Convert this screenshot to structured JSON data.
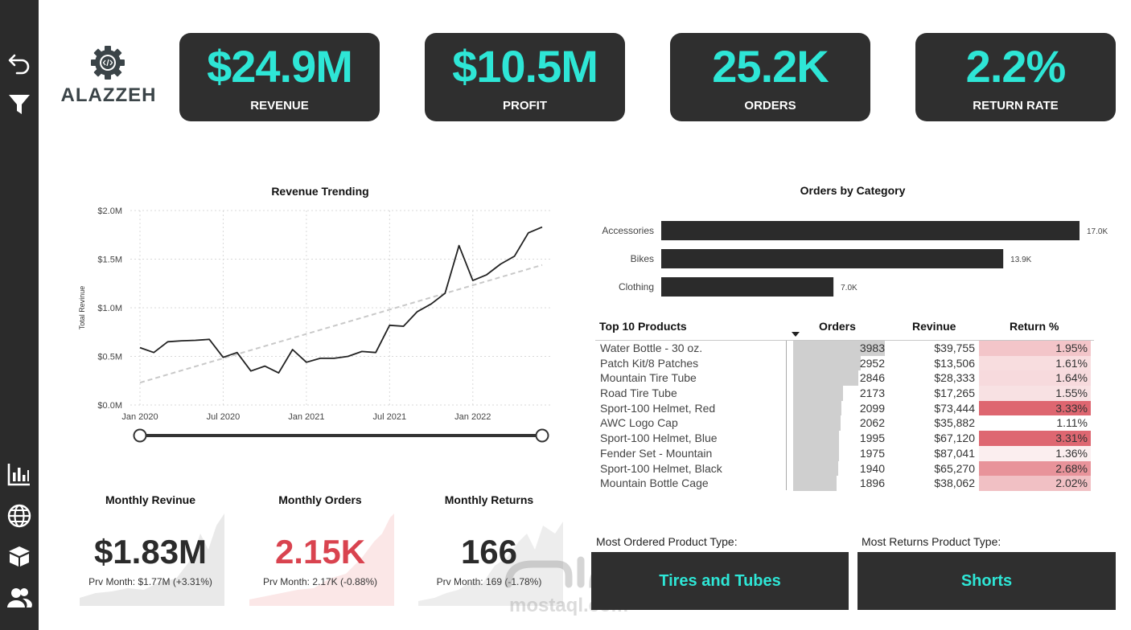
{
  "sidebar": {
    "items": [
      "undo-icon",
      "filter-icon",
      "bar-chart-icon",
      "globe-icon",
      "box-icon",
      "users-icon"
    ]
  },
  "brand": {
    "name": "ALAZZEH"
  },
  "kpis": [
    {
      "value": "$24.9M",
      "label": "REVENUE"
    },
    {
      "value": "$10.5M",
      "label": "PROFIT"
    },
    {
      "value": "25.2K",
      "label": "ORDERS"
    },
    {
      "value": "2.2%",
      "label": "RETURN RATE"
    }
  ],
  "colors": {
    "accent": "#2ee6d6",
    "dark": "#2f2f2f",
    "negative": "#d9434f",
    "line": "#222222"
  },
  "revenue_chart": {
    "title": "Revenue Trending",
    "ylabel": "Total Revinue",
    "yticks": [
      "$0.0M",
      "$0.5M",
      "$1.0M",
      "$1.5M",
      "$2.0M"
    ],
    "xticks": [
      "Jan 2020",
      "Jul 2020",
      "Jan 2021",
      "Jul 2021",
      "Jan 2022"
    ]
  },
  "chart_data": [
    {
      "type": "line",
      "title": "Revenue Trending",
      "xlabel": "",
      "ylabel": "Total Revinue",
      "ylim": [
        0,
        2.0
      ],
      "unit": "$M",
      "x": [
        "Jan 2020",
        "Feb 2020",
        "Mar 2020",
        "Apr 2020",
        "May 2020",
        "Jun 2020",
        "Jul 2020",
        "Aug 2020",
        "Sep 2020",
        "Oct 2020",
        "Nov 2020",
        "Dec 2020",
        "Jan 2021",
        "Feb 2021",
        "Mar 2021",
        "Apr 2021",
        "May 2021",
        "Jun 2021",
        "Jul 2021",
        "Aug 2021",
        "Sep 2021",
        "Oct 2021",
        "Nov 2021",
        "Dec 2021",
        "Jan 2022",
        "Feb 2022",
        "Mar 2022",
        "Apr 2022",
        "May 2022",
        "Jun 2022"
      ],
      "series": [
        {
          "name": "Total Revinue",
          "values": [
            0.59,
            0.54,
            0.65,
            0.66,
            0.665,
            0.675,
            0.49,
            0.54,
            0.35,
            0.4,
            0.33,
            0.57,
            0.44,
            0.48,
            0.48,
            0.5,
            0.55,
            0.54,
            0.82,
            0.81,
            0.96,
            1.04,
            1.15,
            1.64,
            1.28,
            1.34,
            1.45,
            1.53,
            1.77,
            1.83
          ]
        },
        {
          "name": "Trend",
          "style": "dashed",
          "values_endpoints": [
            0.23,
            1.44
          ]
        }
      ],
      "grid": true
    },
    {
      "type": "bar",
      "orientation": "horizontal",
      "title": "Orders by Category",
      "categories": [
        "Accessories",
        "Bikes",
        "Clothing"
      ],
      "values": [
        17.0,
        13.9,
        7.0
      ],
      "value_labels": [
        "17.0K",
        "13.9K",
        "7.0K"
      ],
      "unit": "K orders"
    }
  ],
  "category_chart": {
    "title": "Orders by Category"
  },
  "top_products": {
    "headers": {
      "name": "Top 10 Products",
      "orders": "Orders",
      "revenue": "Revinue",
      "return": "Return %"
    },
    "max_orders": 3983,
    "rows": [
      {
        "name": "Water Bottle - 30 oz.",
        "orders": 3983,
        "orders_label": "3983",
        "revenue": "$39,755",
        "return": "1.95%",
        "return_value": 1.95
      },
      {
        "name": "Patch Kit/8 Patches",
        "orders": 2952,
        "orders_label": "2952",
        "revenue": "$13,506",
        "return": "1.61%",
        "return_value": 1.61
      },
      {
        "name": "Mountain Tire Tube",
        "orders": 2846,
        "orders_label": "2846",
        "revenue": "$28,333",
        "return": "1.64%",
        "return_value": 1.64
      },
      {
        "name": "Road Tire Tube",
        "orders": 2173,
        "orders_label": "2173",
        "revenue": "$17,265",
        "return": "1.55%",
        "return_value": 1.55
      },
      {
        "name": "Sport-100 Helmet, Red",
        "orders": 2099,
        "orders_label": "2099",
        "revenue": "$73,444",
        "return": "3.33%",
        "return_value": 3.33
      },
      {
        "name": "AWC Logo Cap",
        "orders": 2062,
        "orders_label": "2062",
        "revenue": "$35,882",
        "return": "1.11%",
        "return_value": 1.11
      },
      {
        "name": "Sport-100 Helmet, Blue",
        "orders": 1995,
        "orders_label": "1995",
        "revenue": "$67,120",
        "return": "3.31%",
        "return_value": 3.31
      },
      {
        "name": "Fender Set - Mountain",
        "orders": 1975,
        "orders_label": "1975",
        "revenue": "$87,041",
        "return": "1.36%",
        "return_value": 1.36
      },
      {
        "name": "Sport-100 Helmet, Black",
        "orders": 1940,
        "orders_label": "1940",
        "revenue": "$65,270",
        "return": "2.68%",
        "return_value": 2.68
      },
      {
        "name": "Mountain Bottle Cage",
        "orders": 1896,
        "orders_label": "1896",
        "revenue": "$38,062",
        "return": "2.02%",
        "return_value": 2.02
      }
    ]
  },
  "monthly": [
    {
      "title": "Monthly Revinue",
      "value": "$1.83M",
      "sub": "Prv Month: $1.77M (+3.31%)",
      "color": "#2b2b2b"
    },
    {
      "title": "Monthly Orders",
      "value": "2.15K",
      "sub": "Prv Month: 2.17K (-0.88%)",
      "color": "#d9434f"
    },
    {
      "title": "Monthly Returns",
      "value": "166",
      "sub": "Prv Month: 169 (-1.78%)",
      "color": "#2b2b2b"
    }
  ],
  "product_type": {
    "most_ordered_label": "Most Ordered Product Type:",
    "most_ordered_value": "Tires and Tubes",
    "most_returns_label": "Most Returns Product Type:",
    "most_returns_value": "Shorts"
  },
  "watermark": {
    "text": "mostaql.com"
  }
}
